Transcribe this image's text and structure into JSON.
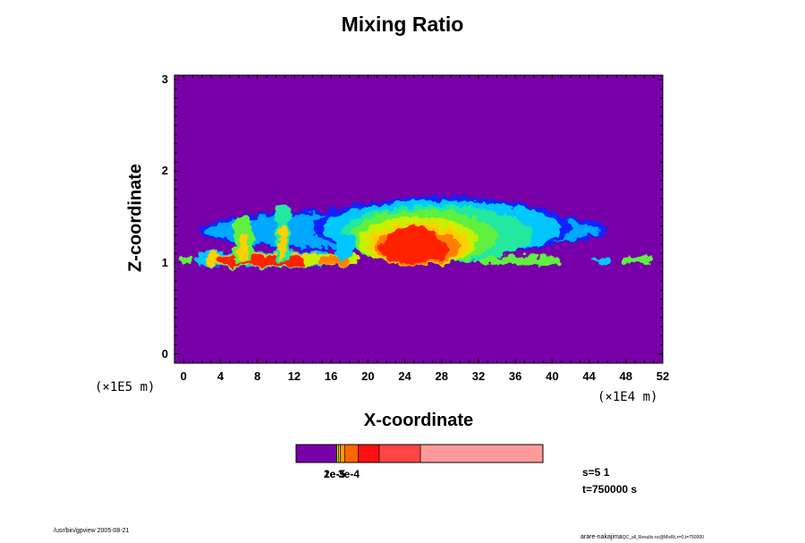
{
  "chart_data": {
    "type": "heatmap",
    "title": "Mixing Ratio",
    "xlabel": "X-coordinate",
    "ylabel": "Z-coordinate",
    "x_scale_label": "(×1E4 m)",
    "y_scale_label": "(×1E5 m)",
    "xlim": [
      -1,
      52
    ],
    "ylim": [
      -0.1,
      3.05
    ],
    "x_ticks": [
      "0",
      "4",
      "8",
      "12",
      "16",
      "20",
      "24",
      "28",
      "32",
      "36",
      "40",
      "44",
      "48",
      "52"
    ],
    "y_ticks": [
      "0",
      "1",
      "2",
      "3"
    ],
    "background_color": "#7800a8",
    "colorbar": {
      "colors": [
        "#7800a8",
        "#c0ff00",
        "#ffd000",
        "#ff9900",
        "#ff6600",
        "#ff1010",
        "#ff4545",
        "#ff9a9a"
      ],
      "fractions": [
        0.165,
        0.007,
        0.007,
        0.018,
        0.055,
        0.085,
        0.167,
        0.496
      ],
      "labels_overlapping": [
        "1e-5",
        "2e-5",
        "3e-4"
      ]
    },
    "cloud_field": [
      {
        "x": [
          1.5,
          46
        ],
        "z_bottom": 0.95,
        "z_top": 1.78,
        "description_level": "outer envelope, low values"
      },
      {
        "x": [
          19,
          32
        ],
        "z_bottom": 0.95,
        "z_top": 1.5,
        "peak": "high"
      },
      {
        "x": [
          4,
          15
        ],
        "z_bottom": 0.95,
        "z_top": 1.1,
        "peak": "high"
      },
      {
        "x": [
          10,
          11.5
        ],
        "z_bottom": 1.0,
        "z_top": 1.65,
        "peak": "medium"
      }
    ],
    "annotations": [
      "s=5 1",
      "t=750000 s"
    ]
  },
  "footer": {
    "left": "/usr/bin/gpview 2005-08-21",
    "right_main": "arare-nakajima",
    "right_small": "QC_all_Results.nc@MixRt,x=0,t=750000"
  }
}
